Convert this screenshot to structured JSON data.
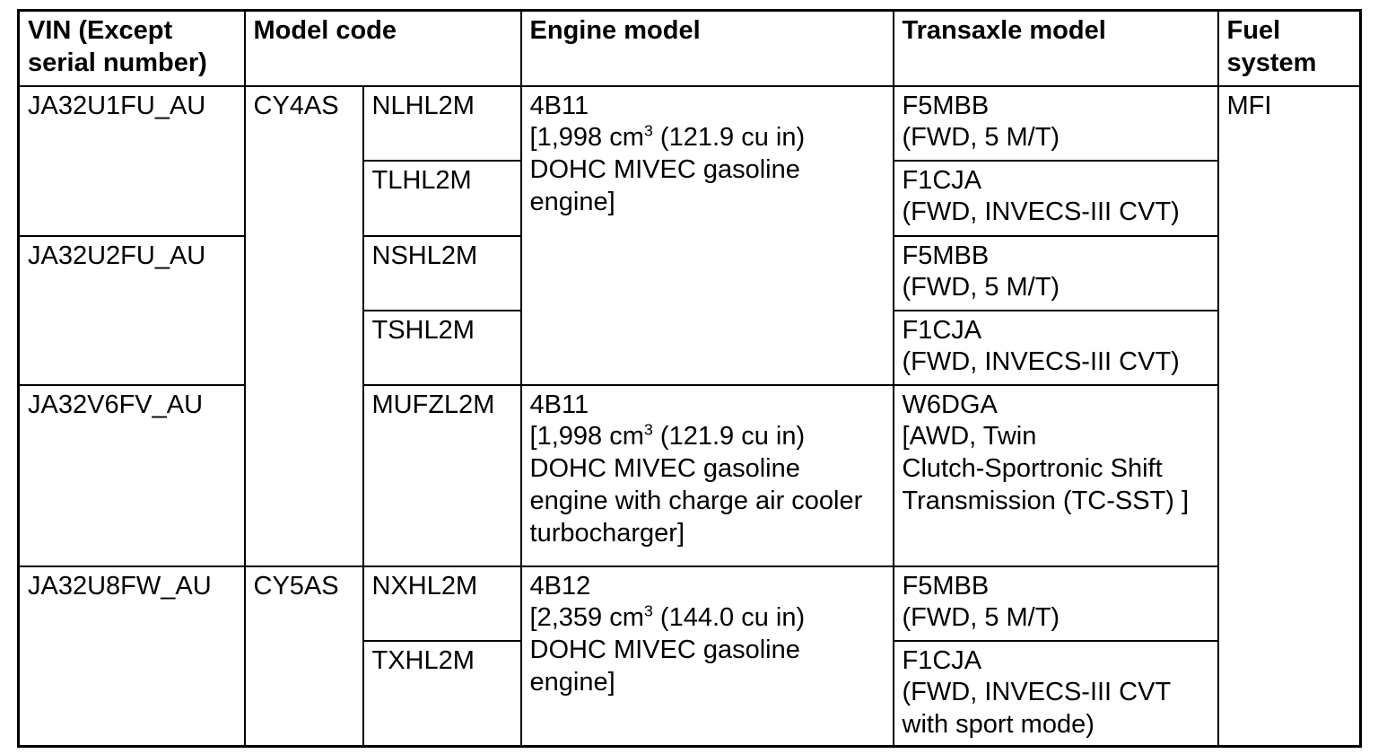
{
  "table": {
    "headers": {
      "vin": [
        "VIN (Except",
        "serial number)"
      ],
      "model_code": "Model code",
      "engine_model": "Engine model",
      "transaxle_model": "Transaxle model",
      "fuel_system": [
        "Fuel",
        "system"
      ]
    },
    "vins": [
      "JA32U1FU_AU",
      "JA32U2FU_AU",
      "JA32V6FV_AU",
      "JA32U8FW_AU"
    ],
    "model_codes": [
      "CY4AS",
      "CY5AS"
    ],
    "variant_codes": [
      "NLHL2M",
      "TLHL2M",
      "NSHL2M",
      "TSHL2M",
      "MUFZL2M",
      "NXHL2M",
      "TXHL2M"
    ],
    "engines": {
      "na_2_0": [
        "4B11",
        [
          "[1,998 cm",
          {
            "sup": "3"
          },
          " (121.9 cu in)"
        ],
        "DOHC MIVEC gasoline",
        "engine]"
      ],
      "turbo_2_0": [
        "4B11",
        [
          "[1,998 cm",
          {
            "sup": "3"
          },
          " (121.9 cu in)"
        ],
        "DOHC MIVEC gasoline",
        "engine with charge air cooler",
        "turbocharger]"
      ],
      "na_2_4": [
        "4B12",
        [
          "[2,359 cm",
          {
            "sup": "3"
          },
          " (144.0 cu in)"
        ],
        "DOHC MIVEC gasoline",
        "engine]"
      ]
    },
    "transaxles": {
      "f5mbb": [
        "F5MBB",
        "(FWD, 5 M/T)"
      ],
      "f1cja": [
        "F1CJA",
        "(FWD, INVECS-III CVT)"
      ],
      "w6dga": [
        "W6DGA",
        "[AWD, Twin",
        "Clutch-Sportronic Shift",
        "Transmission (TC-SST) ]"
      ],
      "f1cja_sport": [
        "F1CJA",
        "(FWD, INVECS-III CVT",
        "with sport mode)"
      ]
    },
    "fuel_system": "MFI",
    "colors": {
      "border": "#000000",
      "text": "#000000",
      "background": "#ffffff"
    }
  }
}
